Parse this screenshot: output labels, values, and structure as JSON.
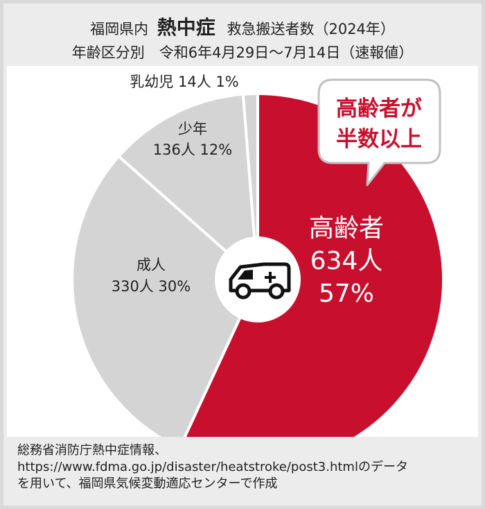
{
  "title": {
    "prefix": "福岡県内",
    "emphasis": "熱中症",
    "suffix": "救急搬送者数（2024年）",
    "line2": "年齢区分別　令和6年4月29日～7月14日（速報値）"
  },
  "callout": {
    "line1": "高齢者が",
    "line2": "半数以上"
  },
  "center_icon": "ambulance-icon",
  "colors": {
    "elderly": "#c8102e",
    "others": "#d4d4d4",
    "slice_border": "#ffffff",
    "background": "#ececec",
    "callout_text": "#c8102e"
  },
  "chart_data": {
    "type": "pie",
    "title": "福岡県内 熱中症 救急搬送者数（2024年）",
    "categories": [
      "高齢者",
      "成人",
      "少年",
      "乳幼児"
    ],
    "values": [
      634,
      330,
      136,
      14
    ],
    "percents": [
      57,
      30,
      12,
      1
    ],
    "unit": "人",
    "labels": [
      {
        "name": "高齢者",
        "count": "634人",
        "pct": "57%"
      },
      {
        "name": "成人",
        "count": "330人",
        "pct": "30%"
      },
      {
        "name": "少年",
        "count": "136人",
        "pct": "12%"
      },
      {
        "name": "乳幼児",
        "count": "14人",
        "pct": "1%"
      }
    ]
  },
  "source": {
    "line1": "総務省消防庁熱中症情報、",
    "line2": "https://www.fdma.go.jp/disaster/heatstroke/post3.htmlのデータ",
    "line3": "を用いて、福岡県気候変動適応センターで作成"
  }
}
